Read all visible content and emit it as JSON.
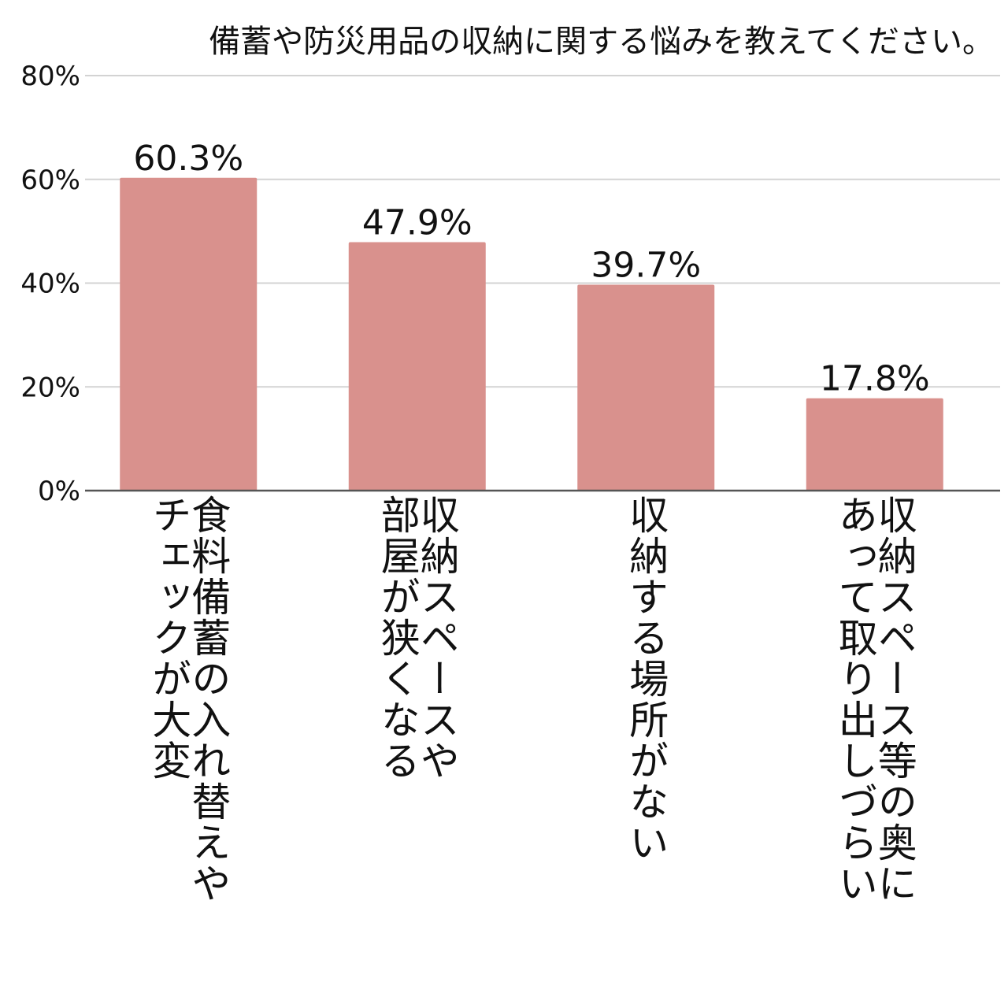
{
  "chart_data": {
    "type": "bar",
    "title": "備蓄や防災用品の収納に関する悩みを教えてください。",
    "categories": [
      "食料備蓄の入れ替えや\nチェックが大変",
      "収納スペースや\n部屋が狭くなる",
      "収納する場所がない",
      "収納スペース等の奥に\nあって取り出しづらい"
    ],
    "values": [
      60.3,
      47.9,
      39.7,
      17.8
    ],
    "value_labels": [
      "60.3%",
      "47.9%",
      "39.7%",
      "17.8%"
    ],
    "ylim": [
      0,
      80
    ],
    "yticks": [
      0,
      20,
      40,
      60,
      80
    ],
    "ytick_labels": [
      "0%",
      "20%",
      "40%",
      "60%",
      "80%"
    ],
    "xlabel": "",
    "ylabel": "",
    "grid": true,
    "colors": {
      "bar": "#d9918d",
      "grid": "#d3d3d3",
      "axis": "#555555",
      "text": "#111111"
    }
  }
}
